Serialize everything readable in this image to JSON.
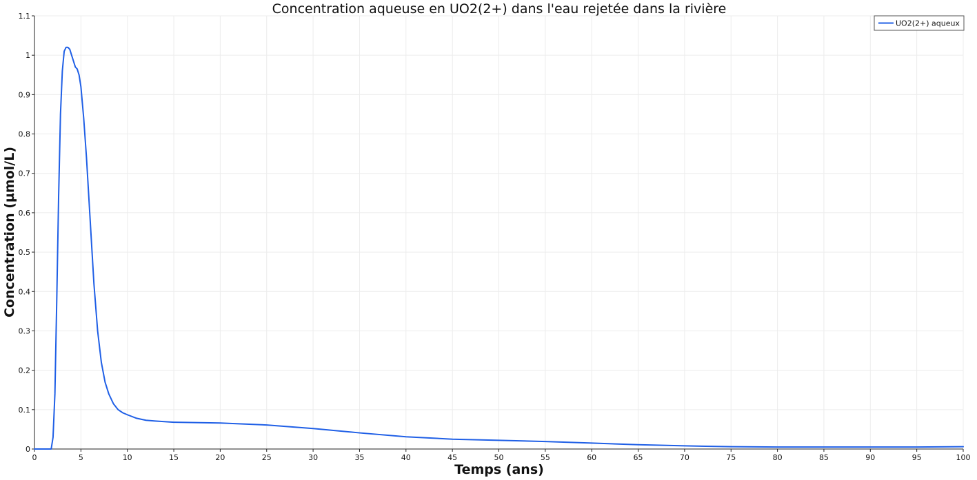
{
  "chart_data": {
    "type": "line",
    "title": "Concentration aqueuse en UO2(2+) dans l'eau rejetée dans la rivière",
    "xlabel": "Temps (ans)",
    "ylabel": "Concentration (µmol/L)",
    "xlim": [
      0,
      100
    ],
    "ylim": [
      0,
      1.1
    ],
    "x_ticks": [
      "0",
      "5",
      "10",
      "15",
      "20",
      "25",
      "30",
      "35",
      "40",
      "45",
      "50",
      "55",
      "60",
      "65",
      "70",
      "75",
      "80",
      "85",
      "90",
      "95",
      "100"
    ],
    "y_ticks": [
      "0",
      "0.1",
      "0.2",
      "0.3",
      "0.4",
      "0.5",
      "0.6",
      "0.7",
      "0.8",
      "0.9",
      "1",
      "1.1"
    ],
    "grid": true,
    "legend": "top-right",
    "series": [
      {
        "name": "UO2(2+) aqueux",
        "color": "#1f5fe6",
        "x": [
          0,
          1.8,
          2.0,
          2.2,
          2.4,
          2.6,
          2.8,
          3.0,
          3.2,
          3.4,
          3.6,
          3.8,
          4.0,
          4.2,
          4.4,
          4.6,
          4.8,
          5.0,
          5.3,
          5.6,
          6.0,
          6.4,
          6.8,
          7.2,
          7.6,
          8.0,
          8.5,
          9.0,
          9.5,
          10,
          11,
          12,
          13,
          15,
          20,
          25,
          30,
          35,
          40,
          45,
          50,
          55,
          60,
          65,
          70,
          75,
          80,
          85,
          90,
          95,
          100
        ],
        "y": [
          0,
          0,
          0.03,
          0.14,
          0.38,
          0.64,
          0.85,
          0.96,
          1.01,
          1.02,
          1.02,
          1.015,
          1.0,
          0.985,
          0.97,
          0.965,
          0.95,
          0.92,
          0.84,
          0.74,
          0.58,
          0.42,
          0.3,
          0.22,
          0.17,
          0.14,
          0.115,
          0.1,
          0.092,
          0.087,
          0.078,
          0.073,
          0.071,
          0.068,
          0.066,
          0.061,
          0.052,
          0.041,
          0.031,
          0.025,
          0.022,
          0.019,
          0.015,
          0.011,
          0.008,
          0.006,
          0.005,
          0.005,
          0.005,
          0.005,
          0.006
        ]
      }
    ]
  }
}
